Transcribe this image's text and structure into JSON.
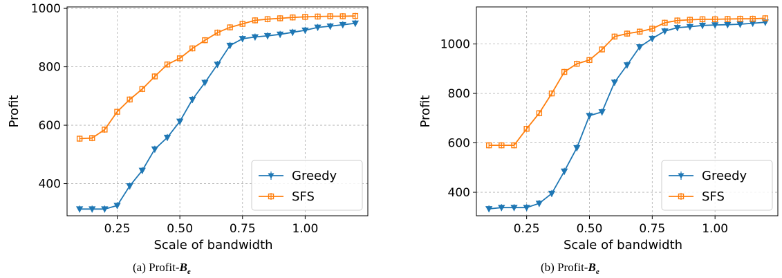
{
  "chart_data": [
    {
      "type": "line",
      "caption": "(a) Profit-",
      "caption_symbol": "B",
      "caption_subscript": "e",
      "xlabel": "Scale of bandwidth",
      "ylabel": "Profit",
      "xlim": [
        0.05,
        1.25
      ],
      "ylim": [
        290,
        1005
      ],
      "xticks": [
        0.25,
        0.5,
        0.75,
        1.0
      ],
      "xtick_labels": [
        "0.25",
        "0.50",
        "0.75",
        "1.00"
      ],
      "yticks": [
        400,
        600,
        800,
        1000
      ],
      "ytick_labels": [
        "400",
        "600",
        "800",
        "1000"
      ],
      "grid": true,
      "legend_position": "lower-right",
      "x": [
        0.1,
        0.15,
        0.2,
        0.25,
        0.3,
        0.35,
        0.4,
        0.45,
        0.5,
        0.55,
        0.6,
        0.65,
        0.7,
        0.75,
        0.8,
        0.85,
        0.9,
        0.95,
        1.0,
        1.05,
        1.1,
        1.15,
        1.2
      ],
      "series": [
        {
          "name": "Greedy",
          "color": "#1f77b4",
          "marker": "triangle-down",
          "values": [
            313,
            313,
            313,
            325,
            392,
            445,
            518,
            558,
            613,
            688,
            746,
            808,
            873,
            896,
            902,
            906,
            911,
            918,
            925,
            935,
            939,
            944,
            949
          ]
        },
        {
          "name": "SFS",
          "color": "#ff7f0e",
          "marker": "square",
          "values": [
            554,
            556,
            585,
            646,
            688,
            724,
            767,
            808,
            829,
            863,
            891,
            917,
            935,
            947,
            959,
            963,
            966,
            969,
            971,
            972,
            973,
            973,
            974
          ]
        }
      ]
    },
    {
      "type": "line",
      "caption": "(b) Profit-",
      "caption_symbol": "B",
      "caption_subscript": "e",
      "xlabel": "Scale of bandwidth",
      "ylabel": "Profit",
      "xlim": [
        0.05,
        1.25
      ],
      "ylim": [
        305,
        1150
      ],
      "xticks": [
        0.25,
        0.5,
        0.75,
        1.0
      ],
      "xtick_labels": [
        "0.25",
        "0.50",
        "0.75",
        "1.00"
      ],
      "yticks": [
        400,
        600,
        800,
        1000
      ],
      "ytick_labels": [
        "400",
        "600",
        "800",
        "1000"
      ],
      "grid": true,
      "legend_position": "lower-right",
      "x": [
        0.1,
        0.15,
        0.2,
        0.25,
        0.3,
        0.35,
        0.4,
        0.45,
        0.5,
        0.55,
        0.6,
        0.65,
        0.7,
        0.75,
        0.8,
        0.85,
        0.9,
        0.95,
        1.0,
        1.05,
        1.1,
        1.15,
        1.2
      ],
      "series": [
        {
          "name": "Greedy",
          "color": "#1f77b4",
          "marker": "triangle-down",
          "values": [
            333,
            338,
            338,
            338,
            355,
            395,
            485,
            580,
            710,
            725,
            845,
            915,
            988,
            1022,
            1052,
            1066,
            1070,
            1075,
            1077,
            1078,
            1080,
            1084,
            1088
          ]
        },
        {
          "name": "SFS",
          "color": "#ff7f0e",
          "marker": "square",
          "values": [
            590,
            590,
            590,
            657,
            720,
            800,
            887,
            920,
            935,
            978,
            1030,
            1042,
            1050,
            1062,
            1086,
            1095,
            1098,
            1100,
            1100,
            1101,
            1102,
            1102,
            1104
          ]
        }
      ]
    }
  ]
}
